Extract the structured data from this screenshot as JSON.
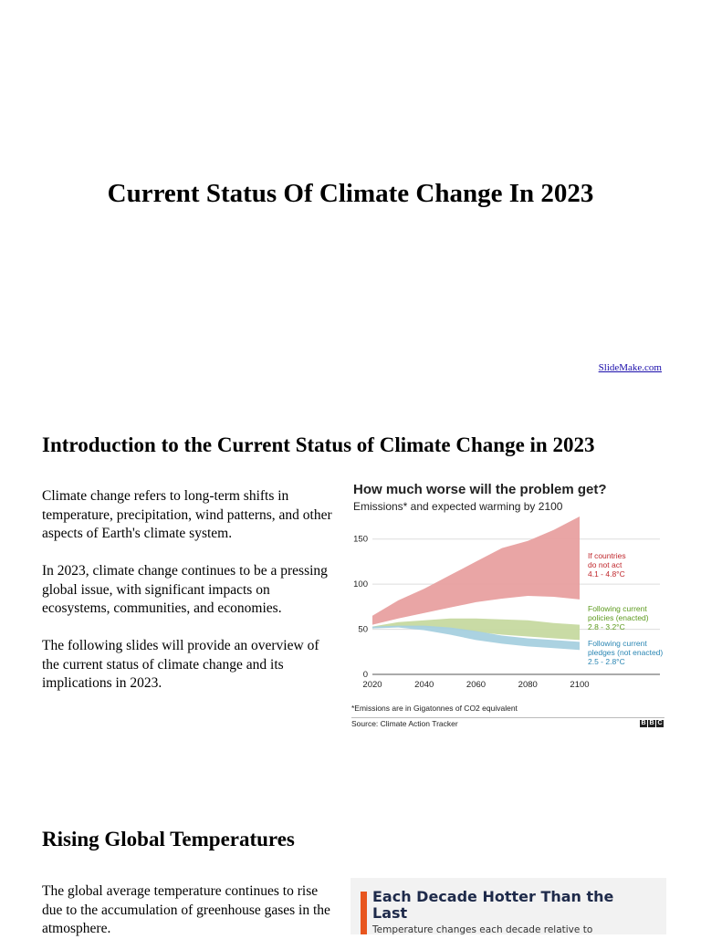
{
  "slide1": {
    "title": "Current Status Of Climate Change In 2023",
    "brand_link": "SlideMake.com"
  },
  "slide2": {
    "heading": "Introduction to the Current Status of Climate Change in 2023",
    "paragraphs": [
      "Climate change refers to long-term shifts in temperature, precipitation, wind patterns, and other aspects of Earth's climate system.",
      "In 2023, climate change continues to be a pressing global issue, with significant impacts on ecosystems, communities, and economies.",
      "The following slides will provide an overview of the current status of climate change and its implications in 2023."
    ],
    "figure": {
      "title": "How much worse will the problem get?",
      "subtitle": "Emissions* and expected warming by 2100",
      "note": "*Emissions are in Gigatonnes of CO2 equivalent",
      "source": "Source: Climate Action Tracker",
      "logo_letters": [
        "B",
        "B",
        "C"
      ]
    }
  },
  "slide3": {
    "heading": "Rising Global Temperatures",
    "paragraph": "The global average temperature continues to rise due to the accumulation of greenhouse gases in the atmosphere.",
    "card": {
      "title": "Each Decade Hotter Than the Last",
      "subtitle": "Temperature changes each decade relative to"
    }
  },
  "chart_data": {
    "type": "area",
    "x_ticks": [
      2020,
      2040,
      2060,
      2080,
      2100
    ],
    "y_ticks": [
      0,
      50,
      100,
      150
    ],
    "xlim": [
      2020,
      2100
    ],
    "ylim": [
      0,
      175
    ],
    "grid": true,
    "series": [
      {
        "name": "If countries do not act",
        "label_lines": [
          "If countries",
          "do not act",
          "4.1 - 4.8°C"
        ],
        "color": "#e8a0a0",
        "label_color": "#c0282d",
        "x": [
          2020,
          2030,
          2040,
          2050,
          2060,
          2070,
          2080,
          2090,
          2100
        ],
        "lower": [
          55,
          62,
          68,
          74,
          80,
          84,
          87,
          86,
          83
        ],
        "upper": [
          65,
          82,
          95,
          110,
          125,
          140,
          148,
          160,
          175
        ]
      },
      {
        "name": "Following current policies (enacted)",
        "label_lines": [
          "Following current",
          "policies (enacted)",
          "2.8 - 3.2°C"
        ],
        "color": "#c6d9a0",
        "label_color": "#5d9a1e",
        "x": [
          2020,
          2030,
          2040,
          2050,
          2060,
          2070,
          2080,
          2090,
          2100
        ],
        "lower": [
          51,
          53,
          52,
          50,
          47,
          44,
          42,
          40,
          38
        ],
        "upper": [
          53,
          58,
          60,
          62,
          62,
          61,
          60,
          57,
          55
        ]
      },
      {
        "name": "Following current pledges (not enacted)",
        "label_lines": [
          "Following current",
          "pledges (not enacted)",
          "2.5 - 2.8°C"
        ],
        "color": "#a6d0df",
        "label_color": "#2a86b3",
        "x": [
          2020,
          2030,
          2040,
          2050,
          2060,
          2070,
          2080,
          2090,
          2100
        ],
        "lower": [
          51,
          52,
          49,
          44,
          38,
          34,
          31,
          29,
          27
        ],
        "upper": [
          53,
          54,
          54,
          52,
          48,
          43,
          40,
          38,
          36
        ]
      }
    ]
  }
}
